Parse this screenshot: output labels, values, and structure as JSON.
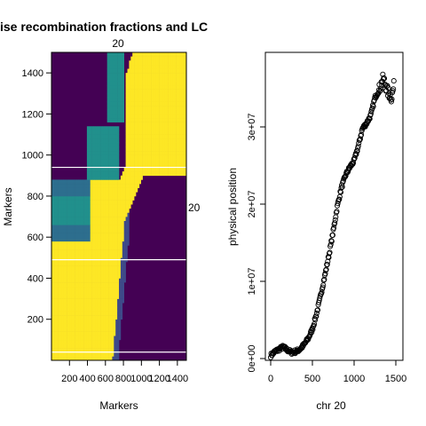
{
  "colors": {
    "viridis_low": "#440154",
    "viridis_mid": "#21908c",
    "viridis_high": "#fde725",
    "axis": "#000000"
  },
  "chart_data": [
    {
      "type": "heatmap",
      "title": "ise recombination fractions and LC",
      "top_label": "20",
      "right_label": "20",
      "xlabel": "Markers",
      "ylabel": "Markers",
      "xlim": [
        0,
        1500
      ],
      "ylim": [
        0,
        1500
      ],
      "x_ticks": [
        200,
        400,
        600,
        800,
        1000,
        1200,
        1400
      ],
      "x_tick_labels": [
        "200",
        "400",
        "600",
        "800",
        "1000",
        "1200",
        "1400"
      ],
      "y_ticks": [
        200,
        400,
        600,
        800,
        1000,
        1200,
        1400
      ],
      "y_tick_labels": [
        "200",
        "400",
        "600",
        "800",
        "1000",
        "1200",
        "1400"
      ],
      "reference_lines_y": [
        40,
        490,
        940
      ]
    },
    {
      "type": "scatter",
      "xlabel": "chr 20",
      "ylabel": "physical position",
      "xlim": [
        0,
        1500
      ],
      "ylim": [
        0,
        38000000
      ],
      "x_ticks": [
        0,
        500,
        1000,
        1500
      ],
      "x_tick_labels": [
        "0",
        "500",
        "1000",
        "1500"
      ],
      "y_ticks": [
        0,
        10000000,
        20000000,
        30000000
      ],
      "y_tick_labels": [
        "0e+00",
        "1e+07",
        "2e+07",
        "3e+07"
      ],
      "curve_points": [
        [
          0,
          400000
        ],
        [
          50,
          900000
        ],
        [
          100,
          1200000
        ],
        [
          150,
          1500000
        ],
        [
          200,
          1100000
        ],
        [
          250,
          800000
        ],
        [
          300,
          900000
        ],
        [
          350,
          1200000
        ],
        [
          400,
          1800000
        ],
        [
          450,
          2600000
        ],
        [
          500,
          3800000
        ],
        [
          550,
          5800000
        ],
        [
          600,
          8200000
        ],
        [
          650,
          10800000
        ],
        [
          700,
          13500000
        ],
        [
          750,
          16500000
        ],
        [
          800,
          19800000
        ],
        [
          850,
          22200000
        ],
        [
          900,
          23800000
        ],
        [
          950,
          24800000
        ],
        [
          1000,
          25600000
        ],
        [
          1050,
          27500000
        ],
        [
          1100,
          29800000
        ],
        [
          1150,
          30500000
        ],
        [
          1200,
          31500000
        ],
        [
          1250,
          33800000
        ],
        [
          1300,
          34800000
        ],
        [
          1350,
          36300000
        ],
        [
          1400,
          34600000
        ],
        [
          1450,
          33800000
        ],
        [
          1480,
          35500000
        ]
      ]
    }
  ]
}
